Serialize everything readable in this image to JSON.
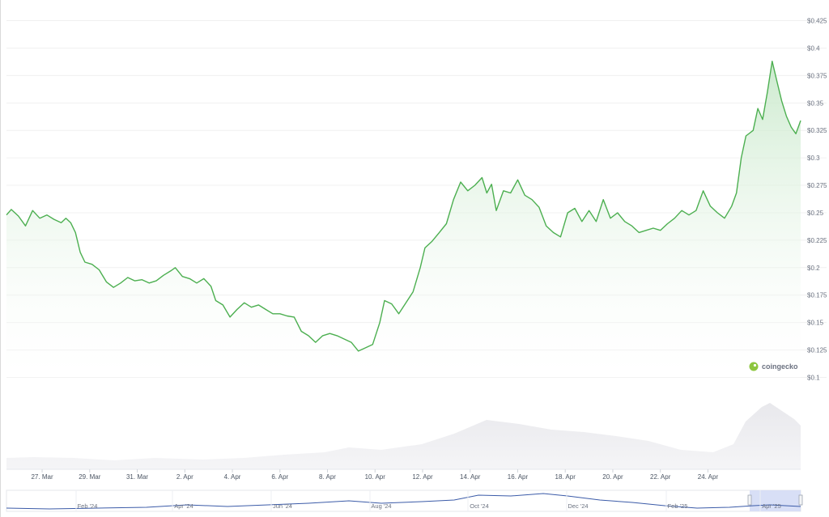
{
  "chart_data": {
    "type": "area",
    "title": "",
    "xlabel": "",
    "ylabel": "",
    "ylim": [
      0.1,
      0.425
    ],
    "y_tick_labels": [
      "$0.1",
      "$0.125",
      "$0.15",
      "$0.175",
      "$0.2",
      "$0.225",
      "$0.25",
      "$0.275",
      "$0.3",
      "$0.325",
      "$0.35",
      "$0.375",
      "$0.4",
      "$0.425"
    ],
    "y_ticks": [
      0.1,
      0.125,
      0.15,
      0.175,
      0.2,
      0.225,
      0.25,
      0.275,
      0.3,
      0.325,
      0.35,
      0.375,
      0.4,
      0.425
    ],
    "x_tick_labels": [
      "27. Mar",
      "29. Mar",
      "31. Mar",
      "2. Apr",
      "4. Apr",
      "6. Apr",
      "8. Apr",
      "10. Apr",
      "12. Apr",
      "14. Apr",
      "16. Apr",
      "18. Apr",
      "20. Apr",
      "22. Apr",
      "24. Apr"
    ],
    "x_range_days": [
      25.5,
      24.9
    ],
    "series": [
      {
        "x_unit": "day",
        "points": [
          [
            25.5,
            0.248
          ],
          [
            25.7,
            0.253
          ],
          [
            26.0,
            0.247
          ],
          [
            26.3,
            0.238
          ],
          [
            26.6,
            0.252
          ],
          [
            26.9,
            0.245
          ],
          [
            27.2,
            0.248
          ],
          [
            27.5,
            0.244
          ],
          [
            27.8,
            0.241
          ],
          [
            28.0,
            0.245
          ],
          [
            28.2,
            0.241
          ],
          [
            28.4,
            0.232
          ],
          [
            28.6,
            0.214
          ],
          [
            28.8,
            0.205
          ],
          [
            29.1,
            0.203
          ],
          [
            29.4,
            0.198
          ],
          [
            29.7,
            0.187
          ],
          [
            30.0,
            0.182
          ],
          [
            30.3,
            0.186
          ],
          [
            30.6,
            0.191
          ],
          [
            30.9,
            0.188
          ],
          [
            31.2,
            0.189
          ],
          [
            31.5,
            0.186
          ],
          [
            31.8,
            0.188
          ],
          [
            32.1,
            0.193
          ],
          [
            32.4,
            0.197
          ],
          [
            32.6,
            0.2
          ],
          [
            32.9,
            0.192
          ],
          [
            33.2,
            0.19
          ],
          [
            33.5,
            0.186
          ],
          [
            33.8,
            0.19
          ],
          [
            34.1,
            0.183
          ],
          [
            34.3,
            0.17
          ],
          [
            34.6,
            0.166
          ],
          [
            34.9,
            0.155
          ],
          [
            35.2,
            0.162
          ],
          [
            35.5,
            0.168
          ],
          [
            35.8,
            0.164
          ],
          [
            36.1,
            0.166
          ],
          [
            36.4,
            0.162
          ],
          [
            36.7,
            0.158
          ],
          [
            37.0,
            0.158
          ],
          [
            37.3,
            0.156
          ],
          [
            37.6,
            0.155
          ],
          [
            37.9,
            0.142
          ],
          [
            38.2,
            0.138
          ],
          [
            38.5,
            0.132
          ],
          [
            38.8,
            0.138
          ],
          [
            39.1,
            0.14
          ],
          [
            39.4,
            0.138
          ],
          [
            39.7,
            0.135
          ],
          [
            40.0,
            0.132
          ],
          [
            40.3,
            0.124
          ],
          [
            40.6,
            0.127
          ],
          [
            40.9,
            0.13
          ],
          [
            41.2,
            0.15
          ],
          [
            41.4,
            0.17
          ],
          [
            41.7,
            0.167
          ],
          [
            42.0,
            0.158
          ],
          [
            42.3,
            0.168
          ],
          [
            42.6,
            0.178
          ],
          [
            42.9,
            0.2
          ],
          [
            43.1,
            0.218
          ],
          [
            43.4,
            0.224
          ],
          [
            43.7,
            0.232
          ],
          [
            44.0,
            0.24
          ],
          [
            44.3,
            0.262
          ],
          [
            44.6,
            0.278
          ],
          [
            44.9,
            0.27
          ],
          [
            45.2,
            0.275
          ],
          [
            45.5,
            0.282
          ],
          [
            45.7,
            0.268
          ],
          [
            45.9,
            0.276
          ],
          [
            46.1,
            0.252
          ],
          [
            46.4,
            0.27
          ],
          [
            46.7,
            0.268
          ],
          [
            47.0,
            0.28
          ],
          [
            47.3,
            0.266
          ],
          [
            47.6,
            0.262
          ],
          [
            47.9,
            0.255
          ],
          [
            48.2,
            0.238
          ],
          [
            48.5,
            0.232
          ],
          [
            48.8,
            0.228
          ],
          [
            49.1,
            0.25
          ],
          [
            49.4,
            0.254
          ],
          [
            49.7,
            0.242
          ],
          [
            50.0,
            0.252
          ],
          [
            50.3,
            0.242
          ],
          [
            50.6,
            0.262
          ],
          [
            50.9,
            0.245
          ],
          [
            51.2,
            0.25
          ],
          [
            51.5,
            0.242
          ],
          [
            51.8,
            0.238
          ],
          [
            52.1,
            0.232
          ],
          [
            52.4,
            0.234
          ],
          [
            52.7,
            0.236
          ],
          [
            53.0,
            0.234
          ],
          [
            53.3,
            0.24
          ],
          [
            53.6,
            0.245
          ],
          [
            53.9,
            0.252
          ],
          [
            54.2,
            0.248
          ],
          [
            54.5,
            0.252
          ],
          [
            54.8,
            0.27
          ],
          [
            55.1,
            0.256
          ],
          [
            55.4,
            0.25
          ],
          [
            55.7,
            0.245
          ],
          [
            56.0,
            0.256
          ],
          [
            56.2,
            0.268
          ],
          [
            56.4,
            0.3
          ],
          [
            56.6,
            0.32
          ],
          [
            56.9,
            0.325
          ],
          [
            57.1,
            0.345
          ],
          [
            57.3,
            0.335
          ],
          [
            57.5,
            0.36
          ],
          [
            57.7,
            0.388
          ],
          [
            57.9,
            0.37
          ],
          [
            58.1,
            0.352
          ],
          [
            58.3,
            0.338
          ],
          [
            58.5,
            0.328
          ],
          [
            58.7,
            0.322
          ],
          [
            58.9,
            0.334
          ]
        ]
      }
    ],
    "nav_tick_labels": [
      "Feb '24",
      "Apr '24",
      "Jun '24",
      "Aug '24",
      "Oct '24",
      "Dec '24",
      "Feb '25",
      "Apr '25"
    ],
    "watermark": "coingecko",
    "colors": {
      "line": "#4caf50",
      "area_top": "#c7e8c9",
      "volume": "#e5e7eb",
      "nav_line": "#3b5ba8",
      "nav_selection": "#d4dcf5",
      "gecko": "#8dc63f"
    }
  }
}
